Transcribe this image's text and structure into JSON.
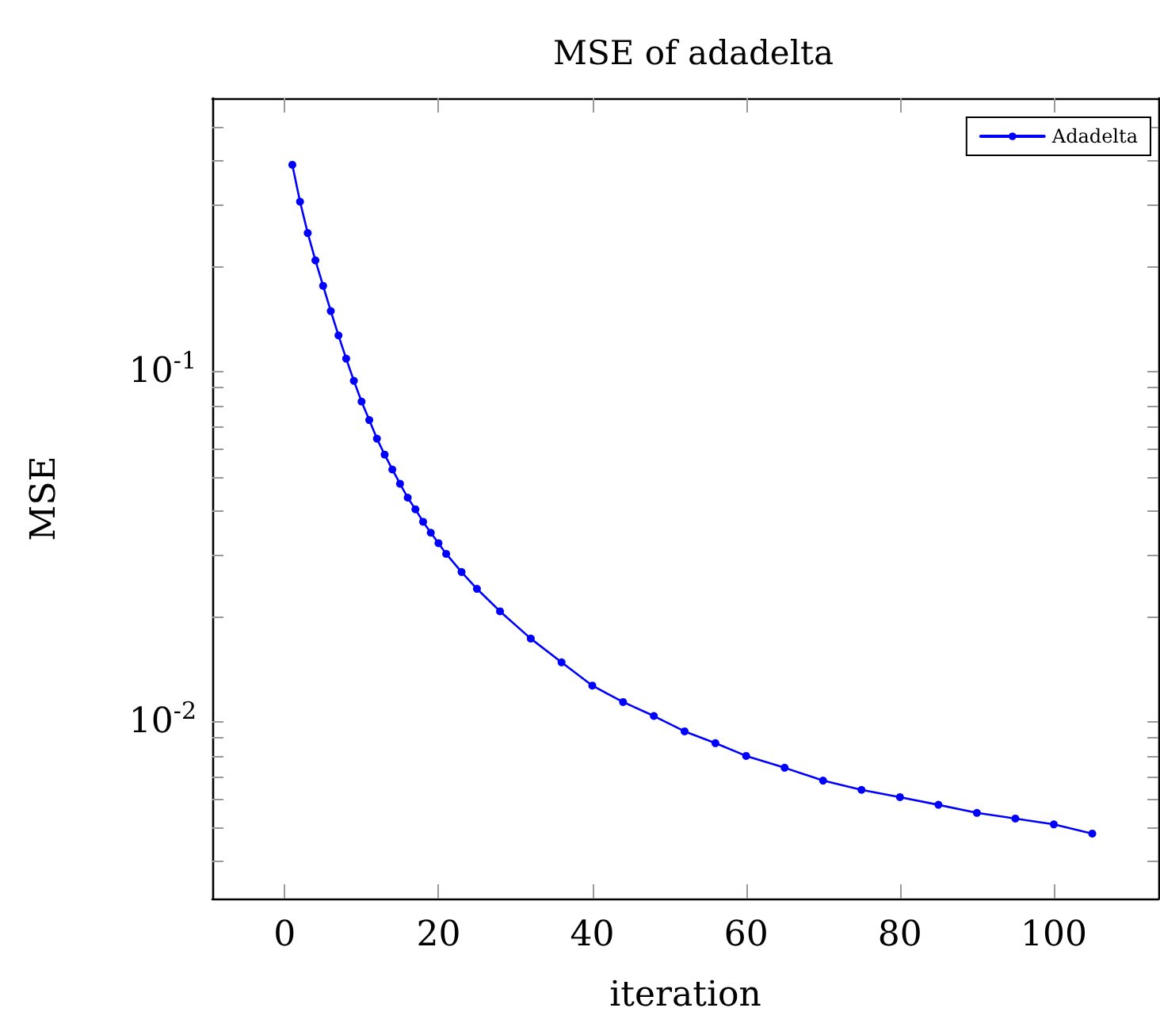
{
  "chart_data": {
    "type": "line",
    "title": "MSE of adadelta",
    "xlabel": "iteration",
    "ylabel": "MSE",
    "log": "y",
    "grid": false,
    "legend": "top right",
    "marker": "circle",
    "line_style": "solid",
    "xlim": [
      -9.4,
      113.6
    ],
    "xticks": [
      0,
      20,
      40,
      60,
      80,
      100
    ],
    "ylim": [
      0.00313,
      0.604
    ],
    "yticks": [
      {
        "value": 0.004,
        "label": null
      },
      {
        "value": 0.005,
        "label": null
      },
      {
        "value": 0.006,
        "label": null
      },
      {
        "value": 0.007,
        "label": null
      },
      {
        "value": 0.008,
        "label": null
      },
      {
        "value": 0.009,
        "label": null
      },
      {
        "value": 0.01,
        "label": "10$^{-2}$"
      },
      {
        "value": 0.02,
        "label": null
      },
      {
        "value": 0.03,
        "label": null
      },
      {
        "value": 0.04,
        "label": null
      },
      {
        "value": 0.05,
        "label": null
      },
      {
        "value": 0.06,
        "label": null
      },
      {
        "value": 0.07,
        "label": null
      },
      {
        "value": 0.08,
        "label": null
      },
      {
        "value": 0.09,
        "label": null
      },
      {
        "value": 0.1,
        "label": "10$^{-1}$"
      },
      {
        "value": 0.2,
        "label": null
      },
      {
        "value": 0.3,
        "label": null
      },
      {
        "value": 0.4,
        "label": null
      },
      {
        "value": 0.5,
        "label": null
      }
    ],
    "series": [
      {
        "name": "Adadelta",
        "color": "#0000ff",
        "x": [
          1,
          2,
          3,
          4,
          5,
          6,
          7,
          8,
          9,
          10,
          11,
          12,
          13,
          14,
          15,
          16,
          17,
          18,
          19,
          20,
          21,
          23,
          25,
          28,
          32,
          36,
          40,
          44,
          48,
          52,
          56,
          60,
          65,
          70,
          75,
          80,
          85,
          90,
          95,
          100,
          105
        ],
        "values": [
          0.39,
          0.306,
          0.249,
          0.208,
          0.176,
          0.149,
          0.127,
          0.109,
          0.0942,
          0.0822,
          0.0728,
          0.0644,
          0.058,
          0.0526,
          0.0479,
          0.0437,
          0.0405,
          0.0373,
          0.0347,
          0.0324,
          0.0302,
          0.0268,
          0.024,
          0.0207,
          0.0173,
          0.0148,
          0.0127,
          0.0114,
          0.0104,
          0.0094,
          0.0087,
          0.008,
          0.0074,
          0.0068,
          0.0064,
          0.0061,
          0.0058,
          0.0055,
          0.0053,
          0.0051,
          0.0048
        ]
      }
    ]
  }
}
